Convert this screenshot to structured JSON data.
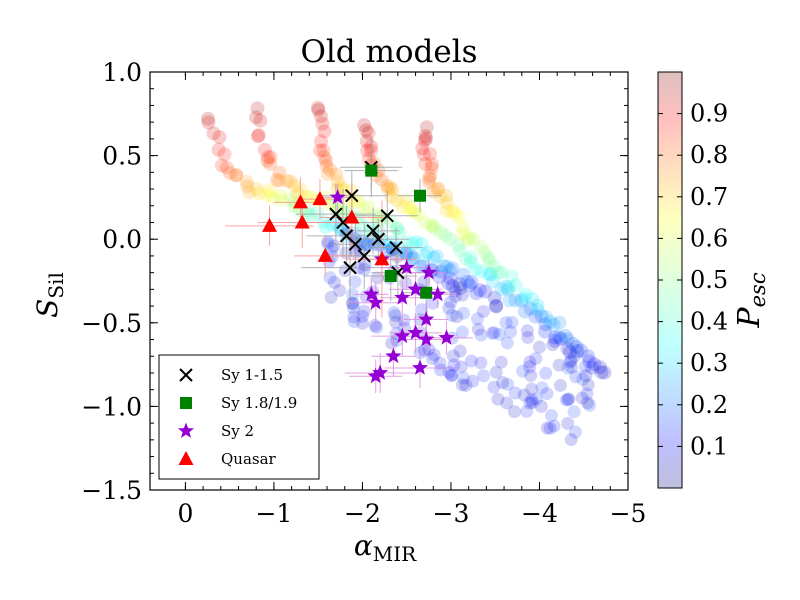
{
  "chart_data": {
    "type": "scatter",
    "title": "Old models",
    "xlabel": {
      "symbol": "α",
      "subscript": "MIR"
    },
    "ylabel": {
      "symbol": "S",
      "subscript": "Sil"
    },
    "colorbar_label": {
      "symbol": "P",
      "subscript": "esc"
    },
    "xlim": [
      0.4,
      -5.0
    ],
    "ylim": [
      -1.5,
      1.0
    ],
    "x_ticks": [
      0,
      -1,
      -2,
      -3,
      -4,
      -5
    ],
    "x_tick_labels": [
      "0",
      "−1",
      "−2",
      "−3",
      "−4",
      "−5"
    ],
    "y_ticks": [
      1.0,
      0.5,
      0.0,
      -0.5,
      -1.0,
      -1.5
    ],
    "y_tick_labels": [
      "1.0",
      "0.5",
      "0.0",
      "−0.5",
      "−1.0",
      "−1.5"
    ],
    "colorbar": {
      "range": [
        0.0,
        1.0
      ],
      "ticks": [
        0.1,
        0.2,
        0.3,
        0.4,
        0.5,
        0.6,
        0.7,
        0.8,
        0.9
      ],
      "tick_labels": [
        "0.1",
        "0.2",
        "0.3",
        "0.4",
        "0.5",
        "0.6",
        "0.7",
        "0.8",
        "0.9"
      ],
      "colormap": "jet",
      "alpha": 0.25
    },
    "legend_placement": "lower-left",
    "model_tracks": [
      {
        "x": [
          -0.25,
          -0.45,
          -0.7,
          -1.0,
          -1.3,
          -1.6,
          -1.9,
          -2.2,
          -2.5
        ],
        "y": [
          0.72,
          0.45,
          0.32,
          0.25,
          0.18,
          0.1,
          0.02,
          -0.05,
          -0.12
        ]
      },
      {
        "x": [
          -0.78,
          -0.9,
          -1.1,
          -1.4,
          -1.7,
          -2.0,
          -2.3,
          -2.6,
          -2.9,
          -3.2
        ],
        "y": [
          0.78,
          0.5,
          0.35,
          0.26,
          0.18,
          0.08,
          -0.02,
          -0.12,
          -0.22,
          -0.32
        ]
      },
      {
        "x": [
          -1.5,
          -1.55,
          -1.65,
          -1.85,
          -2.1,
          -2.4,
          -2.7,
          -3.0,
          -3.3,
          -3.6
        ],
        "y": [
          0.8,
          0.55,
          0.38,
          0.27,
          0.16,
          0.05,
          -0.07,
          -0.18,
          -0.3,
          -0.42
        ]
      },
      {
        "x": [
          -2.05,
          -2.1,
          -2.2,
          -2.4,
          -2.65,
          -2.95,
          -3.25,
          -3.55,
          -3.85,
          -4.15,
          -4.45
        ],
        "y": [
          0.68,
          0.5,
          0.36,
          0.24,
          0.12,
          0.0,
          -0.14,
          -0.28,
          -0.42,
          -0.56,
          -0.7
        ]
      },
      {
        "x": [
          -2.7,
          -2.72,
          -2.8,
          -2.95,
          -3.15,
          -3.4,
          -3.7,
          -4.0,
          -4.3,
          -4.6,
          -4.75
        ],
        "y": [
          0.65,
          0.48,
          0.34,
          0.2,
          0.06,
          -0.1,
          -0.26,
          -0.42,
          -0.58,
          -0.74,
          -0.84
        ]
      }
    ],
    "series": [
      {
        "name": "Sy 1-1.5",
        "marker": "x",
        "color": "#000000",
        "points": [
          {
            "x": -2.1,
            "y": 0.43,
            "xerr": 0.35,
            "yerr": 0.18
          },
          {
            "x": -1.88,
            "y": 0.26,
            "xerr": 0.4,
            "yerr": 0.15
          },
          {
            "x": -1.7,
            "y": 0.15,
            "xerr": 0.45,
            "yerr": 0.18
          },
          {
            "x": -2.28,
            "y": 0.14,
            "xerr": 0.35,
            "yerr": 0.15
          },
          {
            "x": -1.78,
            "y": 0.1,
            "xerr": 0.4,
            "yerr": 0.2
          },
          {
            "x": -2.12,
            "y": 0.05,
            "xerr": 0.3,
            "yerr": 0.14
          },
          {
            "x": -1.82,
            "y": 0.02,
            "xerr": 0.45,
            "yerr": 0.18
          },
          {
            "x": -2.18,
            "y": 0.0,
            "xerr": 0.35,
            "yerr": 0.12
          },
          {
            "x": -1.92,
            "y": -0.03,
            "xerr": 0.3,
            "yerr": 0.15
          },
          {
            "x": -2.38,
            "y": -0.05,
            "xerr": 0.3,
            "yerr": 0.12
          },
          {
            "x": -2.02,
            "y": -0.1,
            "xerr": 0.4,
            "yerr": 0.2
          },
          {
            "x": -1.86,
            "y": -0.17,
            "xerr": 0.55,
            "yerr": 0.25
          },
          {
            "x": -2.4,
            "y": -0.2,
            "xerr": 0.3,
            "yerr": 0.14
          }
        ]
      },
      {
        "name": "Sy 1.8/1.9",
        "marker": "square",
        "color": "#008000",
        "points": [
          {
            "x": -2.1,
            "y": 0.41,
            "xerr": 0.3,
            "yerr": 0.12
          },
          {
            "x": -2.65,
            "y": 0.26,
            "xerr": 0.25,
            "yerr": 0.1
          },
          {
            "x": -2.32,
            "y": -0.22,
            "xerr": 0.3,
            "yerr": 0.15
          },
          {
            "x": -2.72,
            "y": -0.32,
            "xerr": 0.25,
            "yerr": 0.12
          }
        ]
      },
      {
        "name": "Sy 2",
        "marker": "star",
        "color": "#9400d3",
        "points": [
          {
            "x": -1.72,
            "y": 0.25,
            "xerr": 0.2,
            "yerr": 0.08
          },
          {
            "x": -2.22,
            "y": -0.12,
            "xerr": 0.25,
            "yerr": 0.1
          },
          {
            "x": -2.5,
            "y": -0.17,
            "xerr": 0.3,
            "yerr": 0.12
          },
          {
            "x": -2.75,
            "y": -0.2,
            "xerr": 0.2,
            "yerr": 0.08
          },
          {
            "x": -2.6,
            "y": -0.3,
            "xerr": 0.3,
            "yerr": 0.1
          },
          {
            "x": -2.1,
            "y": -0.33,
            "xerr": 0.2,
            "yerr": 0.1
          },
          {
            "x": -2.45,
            "y": -0.35,
            "xerr": 0.25,
            "yerr": 0.1
          },
          {
            "x": -2.85,
            "y": -0.33,
            "xerr": 0.2,
            "yerr": 0.08
          },
          {
            "x": -2.15,
            "y": -0.38,
            "xerr": 0.3,
            "yerr": 0.12
          },
          {
            "x": -2.72,
            "y": -0.48,
            "xerr": 0.25,
            "yerr": 0.1
          },
          {
            "x": -2.6,
            "y": -0.56,
            "xerr": 0.3,
            "yerr": 0.12
          },
          {
            "x": -2.72,
            "y": -0.6,
            "xerr": 0.25,
            "yerr": 0.1
          },
          {
            "x": -2.45,
            "y": -0.58,
            "xerr": 0.35,
            "yerr": 0.12
          },
          {
            "x": -2.95,
            "y": -0.59,
            "xerr": 0.3,
            "yerr": 0.1
          },
          {
            "x": -2.35,
            "y": -0.7,
            "xerr": 0.25,
            "yerr": 0.12
          },
          {
            "x": -2.65,
            "y": -0.77,
            "xerr": 0.4,
            "yerr": 0.12
          },
          {
            "x": -2.2,
            "y": -0.8,
            "xerr": 0.4,
            "yerr": 0.12
          },
          {
            "x": -2.15,
            "y": -0.82,
            "xerr": 0.3,
            "yerr": 0.1
          }
        ]
      },
      {
        "name": "Quasar",
        "marker": "triangle",
        "color": "#ff0000",
        "points": [
          {
            "x": -1.52,
            "y": 0.24,
            "xerr": 0.25,
            "yerr": 0.12
          },
          {
            "x": -1.3,
            "y": 0.22,
            "xerr": 0.3,
            "yerr": 0.15
          },
          {
            "x": -1.88,
            "y": 0.13,
            "xerr": 0.35,
            "yerr": 0.2
          },
          {
            "x": -1.32,
            "y": 0.1,
            "xerr": 0.5,
            "yerr": 0.15
          },
          {
            "x": -0.95,
            "y": 0.08,
            "xerr": 0.5,
            "yerr": 0.12
          },
          {
            "x": -2.22,
            "y": -0.12,
            "xerr": 0.4,
            "yerr": 0.35
          },
          {
            "x": -1.58,
            "y": -0.1,
            "xerr": 0.35,
            "yerr": 0.12
          }
        ]
      }
    ]
  }
}
